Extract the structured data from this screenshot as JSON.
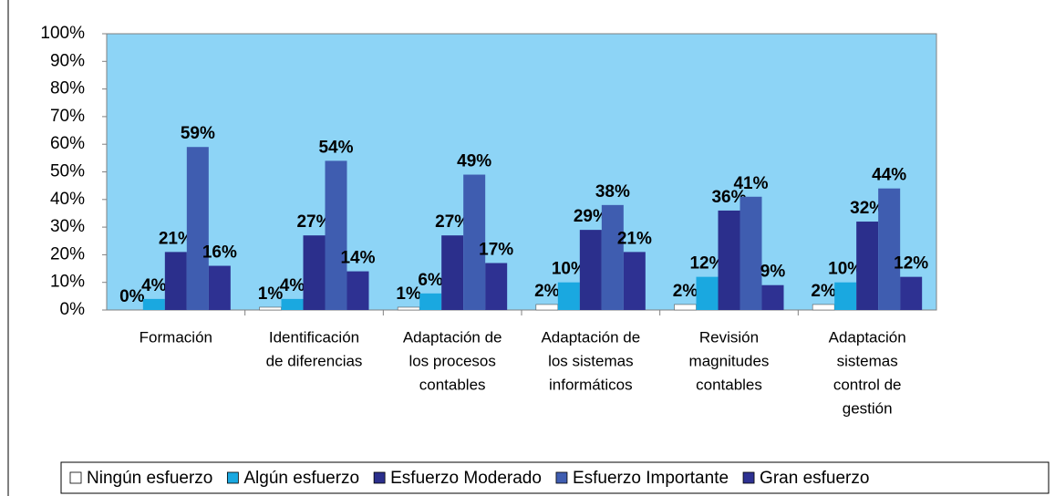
{
  "chart_data": {
    "type": "bar",
    "categories": [
      [
        "Formación"
      ],
      [
        "Identificación",
        "de diferencias"
      ],
      [
        "Adaptación de",
        "los procesos",
        "contables"
      ],
      [
        "Adaptación de",
        "los sistemas",
        "informáticos"
      ],
      [
        "Revisión",
        "magnitudes",
        "contables"
      ],
      [
        "Adaptación",
        "sistemas",
        "control de",
        "gestión"
      ]
    ],
    "series": [
      {
        "name": "Ningún esfuerzo",
        "color": "#ffffff",
        "values": [
          0,
          1,
          1,
          2,
          2,
          2
        ],
        "value_labels": [
          "0%",
          "1%",
          "1%",
          "2%",
          "2%",
          "2%"
        ]
      },
      {
        "name": "Algún esfuerzo",
        "color": "#1aa8e0",
        "values": [
          4,
          4,
          6,
          10,
          12,
          10
        ],
        "value_labels": [
          "4%",
          "4%",
          "6%",
          "10%",
          "12%",
          "10%"
        ]
      },
      {
        "name": "Esfuerzo Moderado",
        "color": "#2b2f8c",
        "values": [
          21,
          27,
          27,
          29,
          36,
          32
        ],
        "value_labels": [
          "21%",
          "27%",
          "27%",
          "29%",
          "36%",
          "32%"
        ]
      },
      {
        "name": "Esfuerzo Importante",
        "color": "#3f5db0",
        "values": [
          59,
          54,
          49,
          38,
          41,
          44
        ],
        "value_labels": [
          "59%",
          "54%",
          "49%",
          "38%",
          "41%",
          "44%"
        ]
      },
      {
        "name": "Gran esfuerzo",
        "color": "#2e3192",
        "values": [
          16,
          14,
          17,
          21,
          9,
          12
        ],
        "value_labels": [
          "16%",
          "14%",
          "17%",
          "21%",
          "9%",
          "12%"
        ]
      }
    ],
    "ylim": [
      0,
      100
    ],
    "yticks": [
      {
        "value": 0,
        "label": "0%"
      },
      {
        "value": 10,
        "label": "10%"
      },
      {
        "value": 20,
        "label": "20%"
      },
      {
        "value": 30,
        "label": "30%"
      },
      {
        "value": 40,
        "label": "40%"
      },
      {
        "value": 50,
        "label": "50%"
      },
      {
        "value": 60,
        "label": "60%"
      },
      {
        "value": 70,
        "label": "70%"
      },
      {
        "value": 80,
        "label": "80%"
      },
      {
        "value": 90,
        "label": "90%"
      },
      {
        "value": 100,
        "label": "100%"
      }
    ],
    "legend": "bottom"
  }
}
